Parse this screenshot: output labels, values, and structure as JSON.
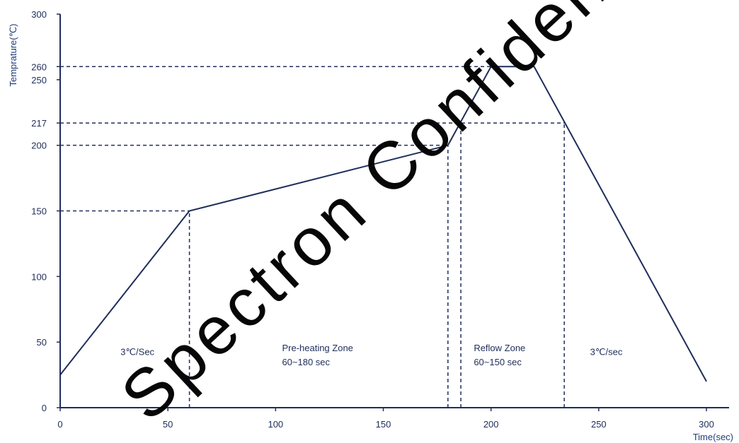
{
  "chart_data": {
    "type": "line",
    "xlabel": "Time(sec)",
    "ylabel": "Temprature(℃)",
    "xlim": [
      0,
      300
    ],
    "ylim": [
      0,
      300
    ],
    "xticks": [
      0,
      50,
      100,
      150,
      200,
      250,
      300
    ],
    "yticks": [
      0,
      50,
      100,
      150,
      200,
      217,
      250,
      260,
      300
    ],
    "series": [
      {
        "x": [
          0,
          60,
          180,
          200,
          220,
          300
        ],
        "y": [
          25,
          150,
          200,
          260,
          260,
          20
        ]
      }
    ],
    "reference_lines": {
      "horizontal": [
        {
          "y": 150,
          "x_end": 60
        },
        {
          "y": 200,
          "x_end": 180
        },
        {
          "y": 217,
          "x_end": 234
        },
        {
          "y": 260,
          "x_end": 200
        }
      ],
      "vertical": [
        {
          "x": 60,
          "y_end": 150
        },
        {
          "x": 180,
          "y_end": 200
        },
        {
          "x": 186,
          "y_end": 217
        },
        {
          "x": 234,
          "y_end": 217
        }
      ]
    },
    "annotations": [
      {
        "lines": [
          "3℃/Sec"
        ],
        "x": 28,
        "y": 40
      },
      {
        "lines": [
          "Pre-heating Zone",
          "60~180 sec"
        ],
        "x": 103,
        "y": 43
      },
      {
        "lines": [
          "Reflow Zone",
          "60~150 sec"
        ],
        "x": 192,
        "y": 43
      },
      {
        "lines": [
          "3℃/sec"
        ],
        "x": 246,
        "y": 40
      }
    ],
    "line_color": "#1f2d5a"
  },
  "watermark": "Spectron Confidential"
}
